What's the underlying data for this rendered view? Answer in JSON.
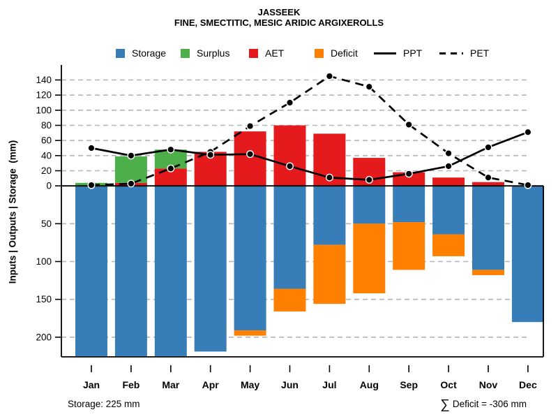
{
  "chart_data": {
    "type": "combo-bar-line",
    "title": "JASSEEK",
    "subtitle": "FINE, SMECTITIC, MESIC ARIDIC ARGIXEROLLS",
    "ylabel": "Inputs | Outputs | Storage  (mm)",
    "months": [
      "Jan",
      "Feb",
      "Mar",
      "Apr",
      "May",
      "Jun",
      "Jul",
      "Aug",
      "Sep",
      "Oct",
      "Nov",
      "Dec"
    ],
    "series": {
      "storage_plotted_below_zero": [
        225,
        225,
        225,
        219,
        191,
        136,
        78,
        50,
        48,
        64,
        111,
        180
      ],
      "aet_stack_bottom": [
        0,
        4,
        23,
        45,
        72,
        80,
        69,
        37,
        18,
        11,
        5,
        0
      ],
      "surplus_stack_top": [
        4,
        35,
        25,
        0,
        0,
        0,
        0,
        0,
        0,
        0,
        0,
        0
      ],
      "deficit_plotted_below_storage": [
        0,
        0,
        0,
        0,
        7,
        30,
        78,
        92,
        63,
        29,
        7,
        0
      ],
      "ppt_line": [
        50,
        40,
        48,
        41,
        42,
        26,
        11,
        8,
        16,
        26,
        51,
        71
      ],
      "pet_line": [
        1,
        3,
        23,
        45,
        79,
        110,
        145,
        131,
        81,
        43,
        11,
        1
      ]
    },
    "axis": {
      "ylim": [
        -226,
        158
      ],
      "upper_ticks": [
        0,
        20,
        40,
        60,
        80,
        100,
        120,
        140
      ],
      "lower_ticks": [
        50,
        100,
        150,
        200
      ],
      "grid": "dashed-horizontal"
    },
    "colors": {
      "storage": "#377EB8",
      "surplus": "#4DAF4A",
      "aet": "#E41A1C",
      "deficit": "#FF7F00",
      "line": "#000000",
      "grid": "#B5B5B5"
    },
    "legend": [
      {
        "label": "Storage",
        "color": "#377EB8",
        "style": "box"
      },
      {
        "label": "Surplus",
        "color": "#4DAF4A",
        "style": "box"
      },
      {
        "label": "AET",
        "color": "#E41A1C",
        "style": "box"
      },
      {
        "label": "Deficit",
        "color": "#FF7F00",
        "style": "box"
      },
      {
        "label": "PPT",
        "style": "solid-line"
      },
      {
        "label": "PET",
        "style": "dashed-line"
      }
    ],
    "annotations": {
      "storage_note": "Storage: 225 mm",
      "deficit_sigma": "∑",
      "deficit_text": "Deficit = -306 mm"
    }
  }
}
